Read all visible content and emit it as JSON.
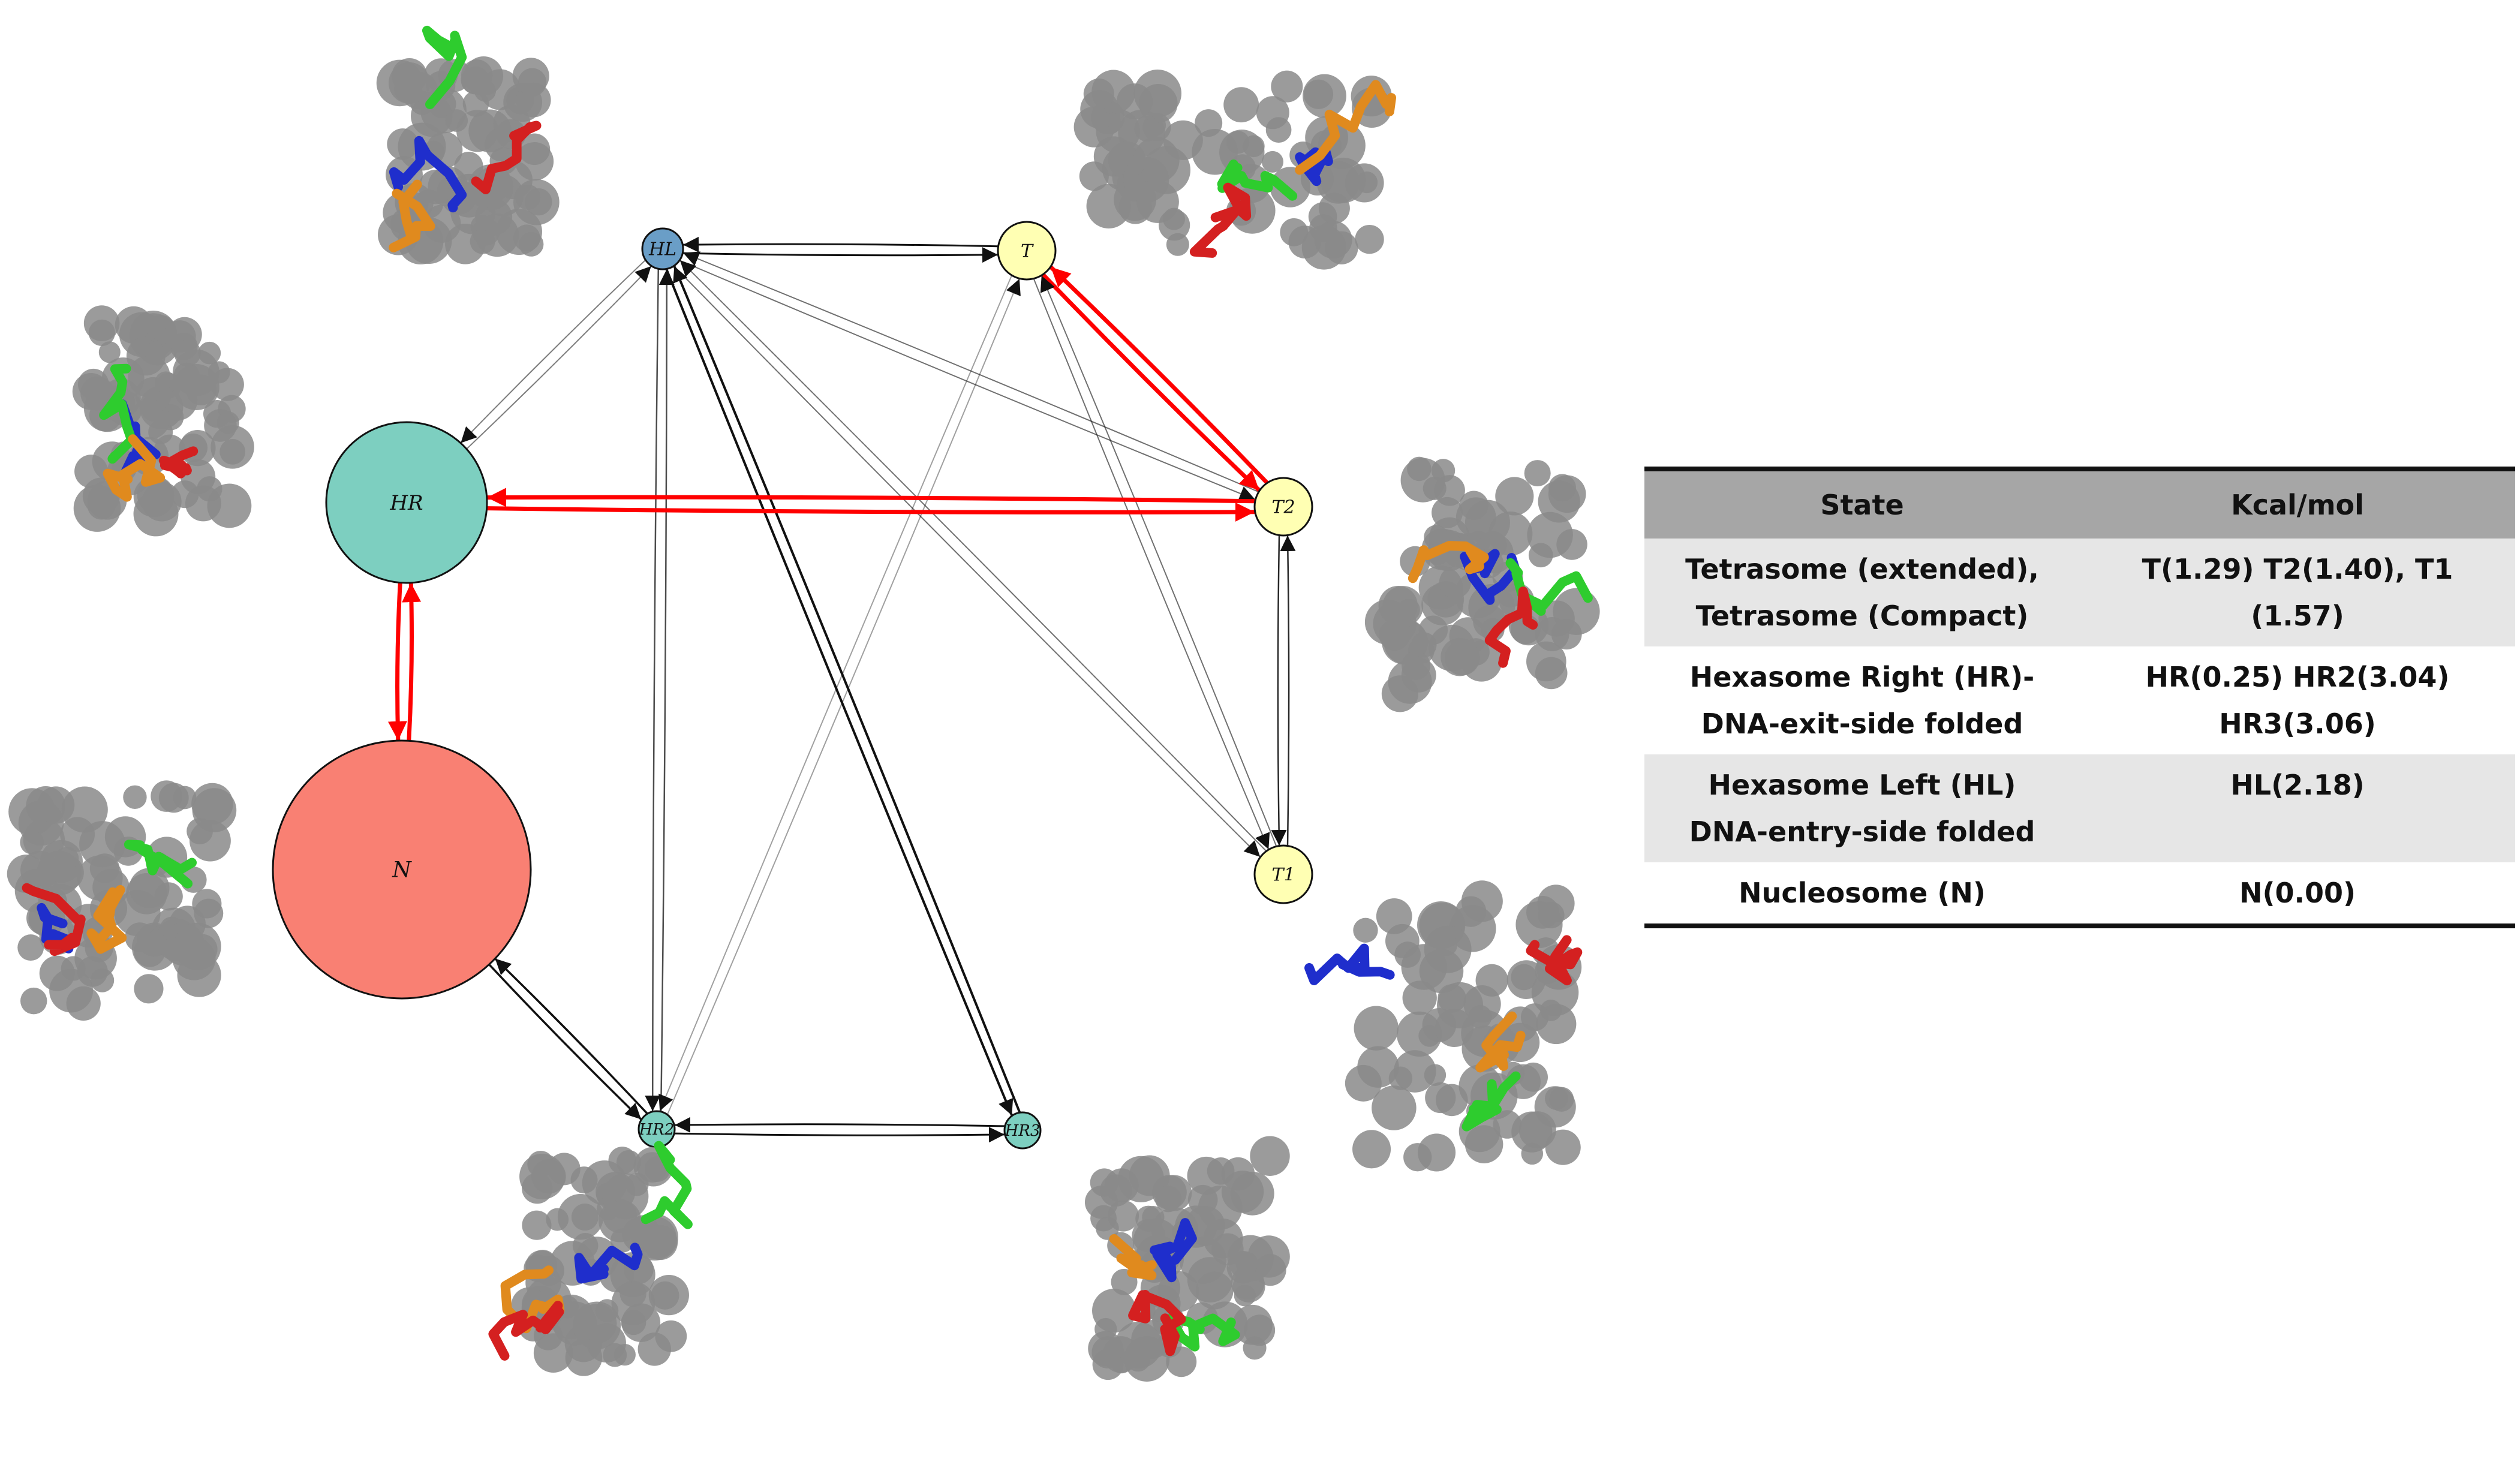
{
  "nodes": [
    {
      "id": "HL",
      "label": "HL",
      "color": "#6a9ec7"
    },
    {
      "id": "T",
      "label": "T",
      "color": "#ffffb3"
    },
    {
      "id": "HR",
      "label": "HR",
      "color": "#7dcfc0"
    },
    {
      "id": "T2",
      "label": "T2",
      "color": "#ffffb3"
    },
    {
      "id": "N",
      "label": "N",
      "color": "#f98073"
    },
    {
      "id": "T1",
      "label": "T1",
      "color": "#ffffb3"
    },
    {
      "id": "HR2",
      "label": "HR2",
      "color": "#7dcfc0"
    },
    {
      "id": "HR3",
      "label": "HR3",
      "color": "#7dcfc0"
    }
  ],
  "edges": {
    "highlight_color": "#ff0000",
    "pairs": [
      [
        "HL",
        "T"
      ],
      [
        "HL",
        "HR"
      ],
      [
        "HL",
        "HR2"
      ],
      [
        "HL",
        "HR3"
      ],
      [
        "HL",
        "T2"
      ],
      [
        "HL",
        "T1"
      ],
      [
        "T",
        "T2"
      ],
      [
        "T",
        "T1"
      ],
      [
        "T",
        "HR2"
      ],
      [
        "HR",
        "T2"
      ],
      [
        "HR",
        "N"
      ],
      [
        "T2",
        "T1"
      ],
      [
        "N",
        "HR2"
      ],
      [
        "HR2",
        "HR3"
      ]
    ],
    "highlighted": [
      [
        "T",
        "T2"
      ],
      [
        "HR",
        "T2"
      ],
      [
        "HR",
        "N"
      ]
    ]
  },
  "legend_colors": {
    "dna": "#8a8a8a",
    "blue": "#1f2ecc",
    "green": "#2ecc2e",
    "orange": "#e08a1e",
    "red": "#d42020"
  },
  "table": {
    "headers": [
      "State",
      "Kcal/mol"
    ],
    "rows": [
      {
        "state": "Tetrasome (extended),\nTetrasome (Compact)",
        "energy": "T(1.29) T2(1.40), T1\n(1.57)"
      },
      {
        "state": "Hexasome Right (HR)-\nDNA-exit-side folded",
        "energy": "HR(0.25) HR2(3.04)\nHR3(3.06)"
      },
      {
        "state": "Hexasome Left (HL)\nDNA-entry-side folded",
        "energy": "HL(2.18)"
      },
      {
        "state": "Nucleosome (N)",
        "energy": "N(0.00)"
      }
    ]
  }
}
